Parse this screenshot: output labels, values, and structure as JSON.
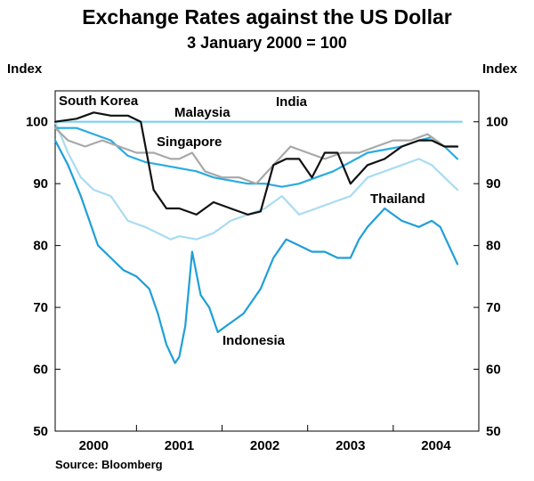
{
  "chart_data": {
    "type": "line",
    "title": "Exchange Rates against the US Dollar",
    "subtitle": "3 January 2000 = 100",
    "ylabel_left": "Index",
    "ylabel_right": "Index",
    "ylim": [
      50,
      105
    ],
    "yticks": [
      50,
      60,
      70,
      80,
      90,
      100
    ],
    "xlim": [
      1999.55,
      2004.5
    ],
    "xticks": [
      {
        "label": "2000",
        "pos": 2000.0
      },
      {
        "label": "2001",
        "pos": 2001.0
      },
      {
        "label": "2002",
        "pos": 2002.0
      },
      {
        "label": "2003",
        "pos": 2003.0
      },
      {
        "label": "2004",
        "pos": 2004.0
      }
    ],
    "source": "Source: Bloomberg",
    "series": [
      {
        "name": "Malaysia",
        "color": "#7fd0ef",
        "x": [
          1999.55,
          2004.3
        ],
        "y": [
          100,
          100
        ]
      },
      {
        "name": "Singapore",
        "color": "#a8a8a8",
        "x": [
          1999.55,
          1999.7,
          1999.9,
          2000.1,
          2000.3,
          2000.5,
          2000.7,
          2000.9,
          2001.0,
          2001.15,
          2001.3,
          2001.5,
          2001.7,
          2001.9,
          2002.1,
          2002.3,
          2002.5,
          2002.7,
          2002.9,
          2003.1,
          2003.3,
          2003.5,
          2003.7,
          2003.9,
          2004.1,
          2004.25
        ],
        "y": [
          99,
          97,
          96,
          97,
          96,
          95,
          95,
          94,
          94,
          95,
          92,
          91,
          91,
          90,
          93,
          96,
          95,
          94,
          95,
          95,
          96,
          97,
          97,
          98,
          96,
          96
        ]
      },
      {
        "name": "South Korea",
        "color": "#111111",
        "x": [
          1999.55,
          1999.8,
          2000.0,
          2000.2,
          2000.4,
          2000.55,
          2000.7,
          2000.85,
          2001.0,
          2001.2,
          2001.4,
          2001.6,
          2001.8,
          2001.95,
          2002.1,
          2002.25,
          2002.4,
          2002.55,
          2002.7,
          2002.85,
          2003.0,
          2003.2,
          2003.4,
          2003.6,
          2003.8,
          2003.95,
          2004.1,
          2004.25
        ],
        "y": [
          100,
          100.5,
          101.5,
          101,
          101,
          100,
          89,
          86,
          86,
          85,
          87,
          86,
          85,
          85.5,
          93,
          94,
          94,
          91,
          95,
          95,
          90,
          93,
          94,
          96,
          97,
          97,
          96,
          96
        ]
      },
      {
        "name": "India",
        "color": "#29abe2",
        "x": [
          1999.55,
          1999.8,
          2000.0,
          2000.2,
          2000.4,
          2000.6,
          2000.8,
          2001.0,
          2001.2,
          2001.4,
          2001.6,
          2001.8,
          2002.0,
          2002.2,
          2002.4,
          2002.6,
          2002.8,
          2003.0,
          2003.2,
          2003.4,
          2003.6,
          2003.8,
          2003.95,
          2004.1,
          2004.25
        ],
        "y": [
          99,
          99,
          98,
          97,
          94.5,
          93.5,
          93,
          92.5,
          92,
          91,
          90.5,
          90,
          90,
          89.5,
          90,
          91,
          92,
          93.5,
          95,
          95.5,
          96,
          97,
          97.5,
          96,
          94
        ]
      },
      {
        "name": "Thailand",
        "color": "#a8dcf2",
        "x": [
          1999.55,
          1999.7,
          1999.85,
          2000.0,
          2000.2,
          2000.4,
          2000.6,
          2000.75,
          2000.9,
          2001.0,
          2001.2,
          2001.4,
          2001.6,
          2001.8,
          2002.0,
          2002.2,
          2002.4,
          2002.6,
          2002.8,
          2003.0,
          2003.2,
          2003.4,
          2003.6,
          2003.8,
          2003.95,
          2004.1,
          2004.25
        ],
        "y": [
          100,
          95,
          91,
          89,
          88,
          84,
          83,
          82,
          81,
          81.5,
          81,
          82,
          84,
          85,
          86,
          88,
          85,
          86,
          87,
          88,
          91,
          92,
          93,
          94,
          93,
          91,
          89
        ]
      },
      {
        "name": "Indonesia",
        "color": "#1e9fd9",
        "x": [
          1999.55,
          1999.7,
          1999.85,
          1999.95,
          2000.05,
          2000.2,
          2000.35,
          2000.5,
          2000.65,
          2000.75,
          2000.85,
          2000.95,
          2001.0,
          2001.07,
          2001.15,
          2001.25,
          2001.35,
          2001.45,
          2001.55,
          2001.65,
          2001.75,
          2001.85,
          2001.95,
          2002.1,
          2002.25,
          2002.4,
          2002.55,
          2002.7,
          2002.85,
          2003.0,
          2003.1,
          2003.2,
          2003.4,
          2003.6,
          2003.8,
          2003.95,
          2004.05,
          2004.15,
          2004.25
        ],
        "y": [
          97,
          93,
          88,
          84,
          80,
          78,
          76,
          75,
          73,
          69,
          64,
          61,
          62,
          67,
          79,
          72,
          70,
          66,
          67,
          68,
          69,
          71,
          73,
          78,
          81,
          80,
          79,
          79,
          78,
          78,
          81,
          83,
          86,
          84,
          83,
          84,
          83,
          80,
          77
        ]
      }
    ],
    "labels": [
      {
        "text": "South Korea",
        "series": "South Korea"
      },
      {
        "text": "Malaysia",
        "series": "Malaysia"
      },
      {
        "text": "India",
        "series": "India"
      },
      {
        "text": "Singapore",
        "series": "Singapore"
      },
      {
        "text": "Thailand",
        "series": "Thailand"
      },
      {
        "text": "Indonesia",
        "series": "Indonesia"
      }
    ]
  }
}
